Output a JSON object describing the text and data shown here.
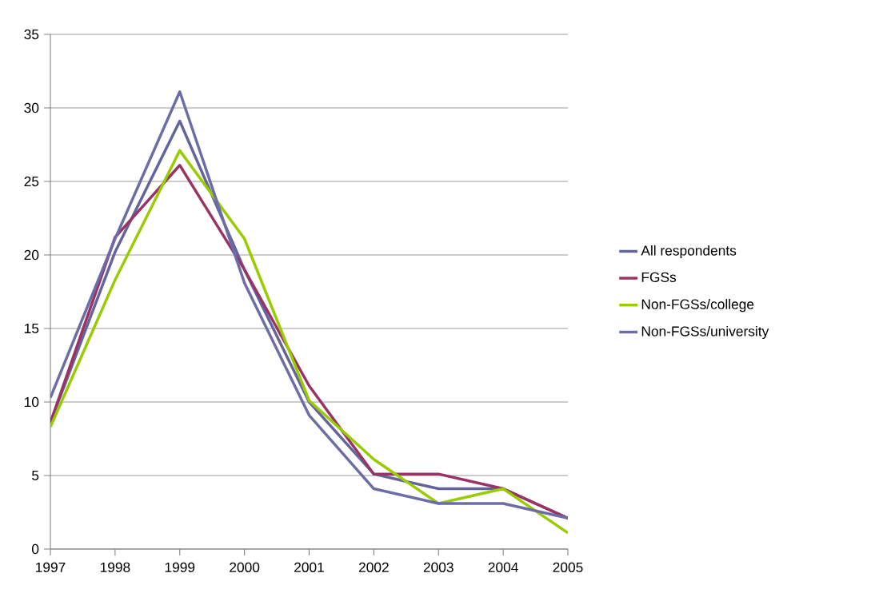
{
  "chart_data": {
    "type": "line",
    "categories": [
      "1997",
      "1998",
      "1999",
      "2000",
      "2001",
      "2002",
      "2003",
      "2004",
      "2005"
    ],
    "series": [
      {
        "name": "All respondents",
        "color": "#64649c",
        "values": [
          8.6,
          20.2,
          29.1,
          19.0,
          10.0,
          5.1,
          4.1,
          4.1,
          2.1
        ]
      },
      {
        "name": "FGSs",
        "color": "#993366",
        "values": [
          8.6,
          21.2,
          26.1,
          19.0,
          11.1,
          5.1,
          5.1,
          4.1,
          2.1
        ]
      },
      {
        "name": "Non-FGSs/college",
        "color": "#99cc00",
        "values": [
          8.3,
          18.3,
          27.1,
          21.1,
          10.1,
          6.1,
          3.1,
          4.1,
          1.1
        ]
      },
      {
        "name": "Non-FGSs/university",
        "color": "#6c6ca6",
        "values": [
          10.3,
          21.1,
          31.1,
          18.1,
          9.1,
          4.1,
          3.1,
          3.1,
          2.1
        ]
      }
    ],
    "ylim": [
      0,
      35
    ],
    "yticks": [
      0,
      5,
      10,
      15,
      20,
      25,
      30,
      35
    ],
    "grid": "y",
    "legend": "right"
  }
}
